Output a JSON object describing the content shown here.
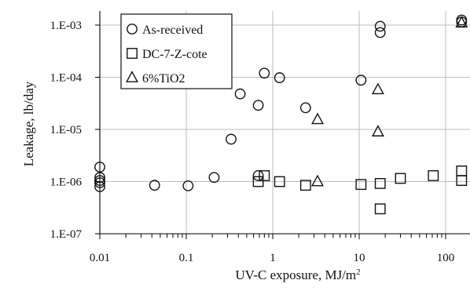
{
  "chart_data": {
    "type": "scatter",
    "title": "",
    "xlabel": "UV-C exposure, MJ/m",
    "xlabel_superscript": "2",
    "ylabel": "Leakage, lb/day",
    "x_scale": "log",
    "y_scale": "log",
    "xlim": [
      0.01,
      160
    ],
    "ylim": [
      1e-07,
      0.002
    ],
    "x_ticks": [
      {
        "value": 0.01,
        "label": "0.01"
      },
      {
        "value": 0.1,
        "label": "0.1"
      },
      {
        "value": 1,
        "label": "1"
      },
      {
        "value": 10,
        "label": "10"
      },
      {
        "value": 100,
        "label": "100"
      }
    ],
    "y_ticks": [
      {
        "value": 1e-07,
        "label": "1.E-07"
      },
      {
        "value": 1e-06,
        "label": "1.E-06"
      },
      {
        "value": 1e-05,
        "label": "1.E-05"
      },
      {
        "value": 0.0001,
        "label": "1.E-04"
      },
      {
        "value": 0.001,
        "label": "1.E-03"
      }
    ],
    "grid": true,
    "legend_position": "top-left",
    "series": [
      {
        "name": "As-received",
        "marker": "circle",
        "x": [
          0.01,
          0.01,
          0.01,
          0.01,
          0.01,
          0.043,
          0.105,
          0.21,
          0.33,
          0.42,
          0.68,
          0.68,
          0.8,
          1.2,
          2.4,
          10.5,
          17.5,
          17.5,
          153,
          153
        ],
        "y": [
          1.9e-06,
          1.2e-06,
          1.05e-06,
          9.5e-07,
          8e-07,
          8.5e-07,
          8.3e-07,
          1.2e-06,
          6.5e-06,
          4.8e-05,
          2.9e-05,
          1.3e-06,
          0.00012,
          9.8e-05,
          2.6e-05,
          8.8e-05,
          0.00095,
          0.00072,
          0.00125,
          0.00115
        ]
      },
      {
        "name": "DC-7-Z-cote",
        "marker": "square",
        "x": [
          0.68,
          0.8,
          1.2,
          2.4,
          10.5,
          17.5,
          17.5,
          30,
          72,
          153,
          153
        ],
        "y": [
          1e-06,
          1.3e-06,
          1e-06,
          8.5e-07,
          8.8e-07,
          9.2e-07,
          3e-07,
          1.15e-06,
          1.3e-06,
          1.6e-06,
          1.05e-06
        ]
      },
      {
        "name": "6%TiO2",
        "marker": "triangle",
        "x": [
          3.3,
          3.3,
          16.5,
          16.5,
          153
        ],
        "y": [
          1e-06,
          1.55e-05,
          5.8e-05,
          9e-06,
          0.0011
        ]
      }
    ]
  }
}
